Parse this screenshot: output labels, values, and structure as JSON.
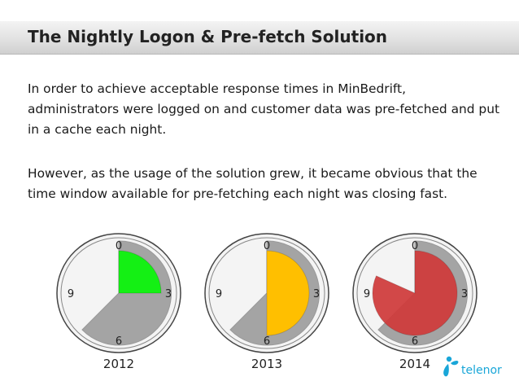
{
  "slide": {
    "title": "The Nightly Logon & Pre-fetch Solution",
    "paragraph1": "In order to achieve acceptable response times in MinBedrift, administrators were logged on and customer data was pre-fetched and put in a cache each night.",
    "paragraph2": "However, as the usage of the solution grew, it became obvious that the time window available for pre-fetching each night was closing fast."
  },
  "clocks": [
    {
      "year": "2012",
      "marks": {
        "top": "0",
        "right": "3",
        "bottom": "6",
        "left": "9"
      },
      "fill_color": "#14f014",
      "fill_start": 0,
      "fill_end": 3
    },
    {
      "year": "2013",
      "marks": {
        "top": "0",
        "right": "3",
        "bottom": "6",
        "left": "9"
      },
      "fill_color": "#ffbf00",
      "fill_start": 0,
      "fill_end": 6
    },
    {
      "year": "2014",
      "marks": {
        "top": "0",
        "right": "3",
        "bottom": "6",
        "left": "9"
      },
      "fill_color": "#d03a3a",
      "fill_start": 0,
      "fill_end": 9.8
    }
  ],
  "logo": {
    "text": "telenor",
    "color": "#19a6d8"
  }
}
